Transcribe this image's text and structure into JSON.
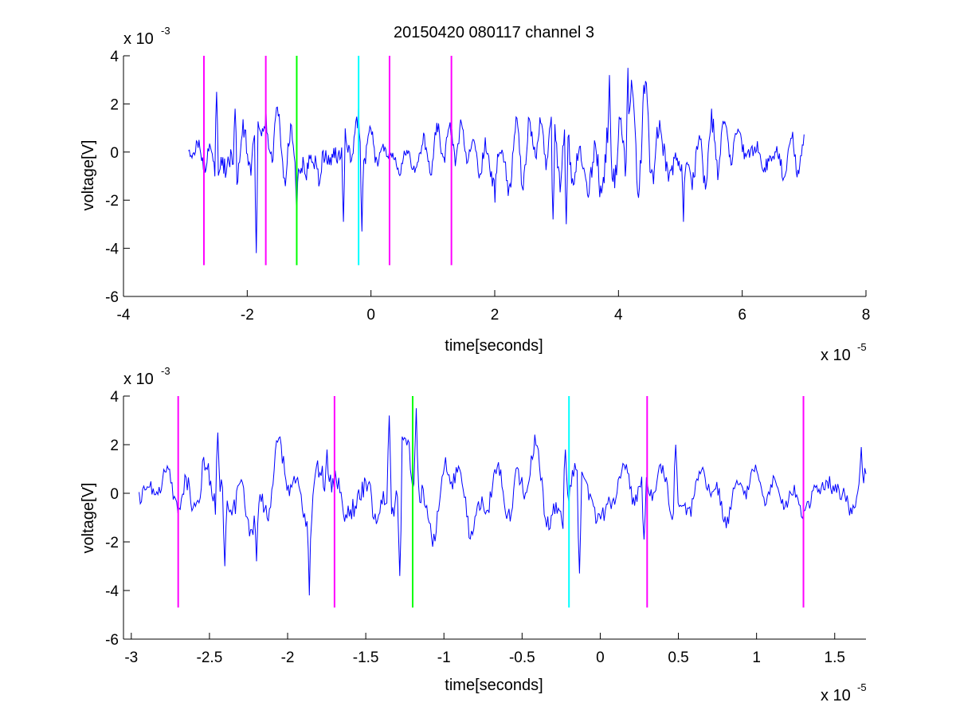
{
  "figure_title": "20150420 080117 channel 3",
  "chart_data": [
    {
      "type": "line",
      "title": "20150420 080117 channel 3",
      "xlabel": "time[seconds]",
      "ylabel": "voltage[V]",
      "x_multiplier": {
        "base": "x 10",
        "exponent": "-5"
      },
      "y_multiplier": {
        "base": "x 10",
        "exponent": "-3"
      },
      "xlim": [
        -4,
        8
      ],
      "ylim": [
        -6,
        4
      ],
      "xticks": [
        -4,
        -2,
        0,
        2,
        4,
        6,
        8
      ],
      "xtick_labels": [
        "-4",
        "-2",
        "0",
        "2",
        "4",
        "6",
        "8"
      ],
      "yticks": [
        -6,
        -4,
        -2,
        0,
        2,
        4
      ],
      "ytick_labels": [
        "-6",
        "-4",
        "-2",
        "0",
        "2",
        "4"
      ],
      "grid": false,
      "legend": "none",
      "signal": {
        "x_start": -2.95,
        "x_end": 7.0,
        "color": "#0000ff",
        "envelope": [
          [
            -2.95,
            0.6
          ],
          [
            -2.5,
            1.5
          ],
          [
            -2.0,
            1.6
          ],
          [
            -1.5,
            1.6
          ],
          [
            -1.0,
            1.6
          ],
          [
            -0.5,
            1.4
          ],
          [
            0.0,
            1.0
          ],
          [
            1.0,
            1.0
          ],
          [
            2.0,
            1.4
          ],
          [
            3.0,
            1.6
          ],
          [
            4.0,
            2.2
          ],
          [
            5.0,
            1.6
          ],
          [
            6.0,
            1.2
          ],
          [
            7.0,
            0.9
          ]
        ],
        "peaks": [
          [
            -2.5,
            2.5
          ],
          [
            -2.2,
            1.8
          ],
          [
            -1.85,
            -4.2
          ],
          [
            -1.7,
            1.8
          ],
          [
            -1.2,
            -2.8
          ],
          [
            -0.45,
            -2.9
          ],
          [
            -0.2,
            1.8
          ],
          [
            -0.15,
            -3.3
          ],
          [
            2.0,
            -2.1
          ],
          [
            2.95,
            -2.8
          ],
          [
            3.15,
            -3.0
          ],
          [
            3.85,
            3.2
          ],
          [
            4.15,
            3.5
          ],
          [
            5.05,
            -2.9
          ],
          [
            5.5,
            1.8
          ]
        ]
      },
      "markers": [
        {
          "x": -2.7,
          "color": "#ff00ff",
          "y_top": 4,
          "y_bottom": -4.7
        },
        {
          "x": -1.7,
          "color": "#ff00ff",
          "y_top": 4,
          "y_bottom": -4.7
        },
        {
          "x": -1.2,
          "color": "#00ff00",
          "y_top": 4,
          "y_bottom": -4.7
        },
        {
          "x": -0.2,
          "color": "#00ffff",
          "y_top": 4,
          "y_bottom": -4.7
        },
        {
          "x": 0.3,
          "color": "#ff00ff",
          "y_top": 4,
          "y_bottom": -4.7
        },
        {
          "x": 1.3,
          "color": "#ff00ff",
          "y_top": 4,
          "y_bottom": -4.7
        }
      ]
    },
    {
      "type": "line",
      "title": "",
      "xlabel": "time[seconds]",
      "ylabel": "voltage[V]",
      "x_multiplier": {
        "base": "x 10",
        "exponent": "-5"
      },
      "y_multiplier": {
        "base": "x 10",
        "exponent": "-3"
      },
      "xlim": [
        -3.05,
        1.7
      ],
      "ylim": [
        -6,
        4
      ],
      "xticks": [
        -3,
        -2.5,
        -2,
        -1.5,
        -1,
        -0.5,
        0,
        0.5,
        1,
        1.5
      ],
      "xtick_labels": [
        "-3",
        "-2.5",
        "-2",
        "-1.5",
        "-1",
        "-0.5",
        "0",
        "0.5",
        "1",
        "1.5"
      ],
      "yticks": [
        -6,
        -4,
        -2,
        0,
        2,
        4
      ],
      "ytick_labels": [
        "-6",
        "-4",
        "-2",
        "0",
        "2",
        "4"
      ],
      "grid": false,
      "legend": "none",
      "signal": {
        "x_start": -2.95,
        "x_end": 1.7,
        "color": "#0000ff",
        "envelope": [
          [
            -2.95,
            0.8
          ],
          [
            -2.7,
            1.2
          ],
          [
            -2.5,
            1.8
          ],
          [
            -2.0,
            1.6
          ],
          [
            -1.5,
            1.8
          ],
          [
            -1.0,
            1.6
          ],
          [
            -0.5,
            1.5
          ],
          [
            0.0,
            1.4
          ],
          [
            0.5,
            1.2
          ],
          [
            1.0,
            0.9
          ],
          [
            1.3,
            1.0
          ],
          [
            1.7,
            1.5
          ]
        ],
        "peaks": [
          [
            -2.92,
            0.3
          ],
          [
            -2.45,
            2.5
          ],
          [
            -2.4,
            -3.0
          ],
          [
            -2.2,
            -2.8
          ],
          [
            -1.86,
            -4.2
          ],
          [
            -1.75,
            1.8
          ],
          [
            -1.35,
            3.2
          ],
          [
            -1.28,
            -3.4
          ],
          [
            -1.18,
            3.5
          ],
          [
            -0.22,
            1.8
          ],
          [
            -0.13,
            -3.3
          ],
          [
            0.48,
            2.0
          ],
          [
            0.28,
            -1.9
          ],
          [
            1.67,
            1.9
          ]
        ]
      },
      "markers": [
        {
          "x": -2.7,
          "color": "#ff00ff",
          "y_top": 4,
          "y_bottom": -4.7
        },
        {
          "x": -1.7,
          "color": "#ff00ff",
          "y_top": 4,
          "y_bottom": -4.7
        },
        {
          "x": -1.2,
          "color": "#00ff00",
          "y_top": 4,
          "y_bottom": -4.7
        },
        {
          "x": -0.2,
          "color": "#00ffff",
          "y_top": 4,
          "y_bottom": -4.7
        },
        {
          "x": 0.3,
          "color": "#ff00ff",
          "y_top": 4,
          "y_bottom": -4.7
        },
        {
          "x": 1.3,
          "color": "#ff00ff",
          "y_top": 4,
          "y_bottom": -4.7
        }
      ]
    }
  ]
}
